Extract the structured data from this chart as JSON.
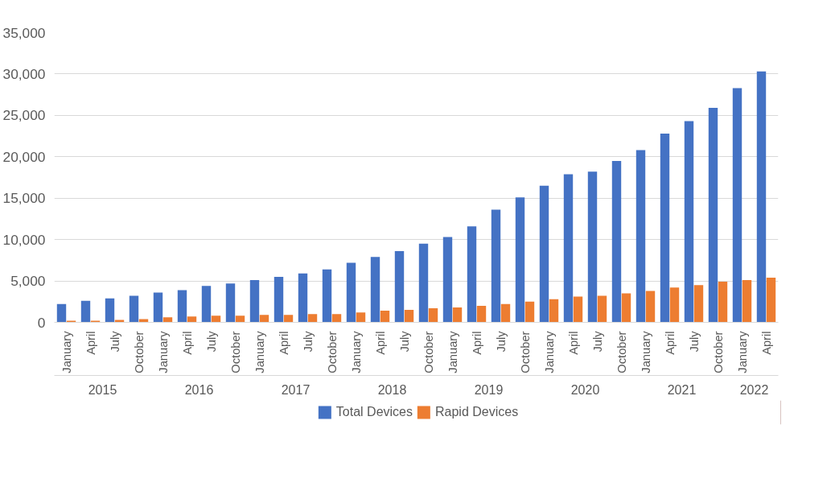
{
  "chart_data": {
    "type": "bar",
    "categories": [
      "January",
      "April",
      "July",
      "October",
      "January",
      "April",
      "July",
      "October",
      "January",
      "April",
      "July",
      "October",
      "January",
      "April",
      "July",
      "October",
      "January",
      "April",
      "July",
      "October",
      "January",
      "April",
      "July",
      "October",
      "January",
      "April",
      "July",
      "October",
      "January",
      "April"
    ],
    "series": [
      {
        "name": "Total Devices",
        "color": "#4472c4",
        "values": [
          2200,
          2600,
          2900,
          3200,
          3600,
          3900,
          4400,
          4700,
          5100,
          5500,
          5900,
          6400,
          7200,
          7900,
          8600,
          9500,
          10300,
          11600,
          13600,
          15100,
          16500,
          17900,
          18200,
          19500,
          20800,
          22800,
          24300,
          25900,
          28300,
          30300
        ]
      },
      {
        "name": "Rapid Devices",
        "color": "#ed7d31",
        "values": [
          200,
          200,
          300,
          400,
          600,
          700,
          800,
          800,
          900,
          900,
          1000,
          1000,
          1200,
          1400,
          1500,
          1700,
          1800,
          2000,
          2200,
          2500,
          2800,
          3100,
          3200,
          3500,
          3800,
          4200,
          4500,
          4900,
          5100,
          5400
        ]
      }
    ],
    "annotations": [
      "2015",
      "2016",
      "2017",
      "2018",
      "2019",
      "2020",
      "2021",
      "2022"
    ],
    "ylim": [
      0,
      35000
    ],
    "yticks": [
      0,
      {
        "value": 5000,
        "label": "5,000"
      },
      {
        "value": 10000,
        "label": "10,000"
      },
      {
        "value": 15000,
        "label": "15,000"
      },
      {
        "value": 20000,
        "label": "20,000"
      },
      {
        "value": 25000,
        "label": "25,000"
      },
      {
        "value": 30000,
        "label": "30,000"
      },
      {
        "value": 35000,
        "label": "35,000"
      }
    ],
    "grid": "y",
    "legend": "bottom"
  }
}
